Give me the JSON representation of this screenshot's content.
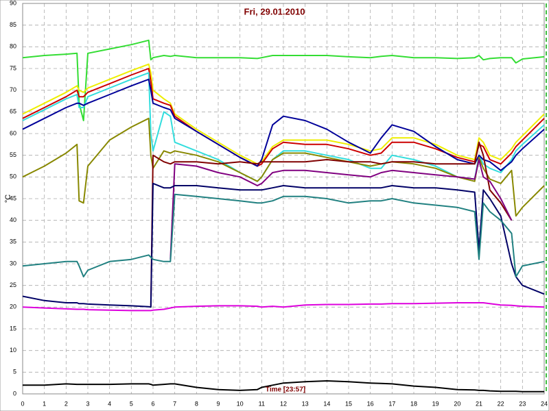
{
  "chart_data": {
    "type": "line",
    "title": "Fri, 29.01.2010",
    "y_label": "°C",
    "x_label": "Time [23:57]",
    "xlim": [
      0,
      24
    ],
    "ylim": [
      0,
      90
    ],
    "xticks": [
      0,
      1,
      2,
      3,
      4,
      5,
      6,
      7,
      8,
      9,
      10,
      11,
      12,
      13,
      14,
      15,
      16,
      17,
      18,
      19,
      20,
      21,
      22,
      23,
      24
    ],
    "yticks": [
      0,
      5,
      10,
      15,
      20,
      25,
      30,
      35,
      40,
      45,
      50,
      55,
      60,
      65,
      70,
      75,
      80,
      85,
      90
    ],
    "grid": true,
    "x": [
      0,
      1,
      2,
      2.5,
      2.6,
      2.8,
      3,
      4,
      5,
      5.8,
      5.9,
      6,
      6.5,
      6.8,
      7,
      8,
      9,
      10,
      10.8,
      11,
      11.5,
      12,
      13,
      14,
      15,
      16,
      16.5,
      17,
      18,
      19,
      20,
      20.8,
      21,
      21.2,
      21.5,
      22,
      22.5,
      22.7,
      23,
      24
    ],
    "series": [
      {
        "color": "#33dd33",
        "values": [
          77.5,
          78,
          78.3,
          78.5,
          67,
          63,
          78.5,
          79.5,
          80.5,
          81.5,
          77,
          77.5,
          78,
          77.8,
          78,
          77.5,
          77.5,
          77.5,
          77.3,
          77.5,
          78,
          78,
          78,
          78,
          77.7,
          77.5,
          77.8,
          78,
          77.5,
          77.5,
          77.3,
          77.5,
          78,
          77,
          77.3,
          77.5,
          77.5,
          76.3,
          77.2,
          77.7
        ]
      },
      {
        "color": "#eeee00",
        "values": [
          64.5,
          67,
          69.5,
          71,
          70,
          69.5,
          70.5,
          72.5,
          74.5,
          76,
          74,
          70,
          68,
          67,
          64.5,
          61,
          58,
          55,
          53,
          53.5,
          57,
          58.5,
          58.5,
          58.5,
          57.5,
          56,
          56.5,
          59,
          59,
          57.5,
          55,
          54,
          59,
          58,
          55,
          54,
          56.5,
          58,
          59.5,
          64.5
        ]
      },
      {
        "color": "#cc0000",
        "values": [
          63.5,
          66,
          68.5,
          70,
          68.5,
          68.5,
          69.5,
          71.5,
          73.5,
          75,
          72,
          68,
          67,
          66.5,
          64,
          60.5,
          57.5,
          54.5,
          52.5,
          53,
          56.5,
          58,
          57.5,
          57.5,
          56.5,
          55,
          55.5,
          58,
          58,
          56.5,
          54.5,
          53.5,
          57.5,
          57,
          54,
          53,
          55.5,
          57,
          58.5,
          63.5
        ]
      },
      {
        "color": "#33dddd",
        "values": [
          63,
          65.5,
          68,
          69,
          66,
          66,
          68.5,
          70.5,
          72.5,
          74,
          60,
          56,
          65,
          64,
          58,
          56,
          54,
          51,
          49,
          50,
          54,
          56,
          56,
          55,
          54,
          52,
          52,
          55,
          54,
          52.5,
          50,
          49.5,
          55,
          53,
          52,
          51,
          54,
          56,
          57.5,
          62
        ]
      },
      {
        "color": "#000099",
        "values": [
          61,
          63.5,
          66,
          67,
          67,
          66.5,
          67,
          69,
          71,
          72.5,
          70,
          67,
          66,
          65.5,
          63.5,
          60.5,
          57.5,
          54.5,
          52.5,
          54,
          62,
          64,
          63,
          61,
          58,
          55.5,
          59,
          62,
          60.5,
          57,
          54,
          53,
          55,
          54,
          53.5,
          51.5,
          53.5,
          55,
          56.5,
          61
        ]
      },
      {
        "color": "#888800",
        "values": [
          50,
          52.5,
          55.5,
          57.5,
          44.5,
          44,
          52.5,
          58.5,
          61.5,
          63.5,
          55,
          52,
          56,
          55.5,
          56,
          55,
          53.5,
          51,
          49,
          50,
          54,
          55.5,
          55.5,
          54.5,
          53.5,
          52.5,
          53,
          53.5,
          53,
          52,
          50,
          49,
          54.5,
          52,
          49.5,
          48.5,
          51.5,
          41,
          43,
          48
        ]
      },
      {
        "color": "#800000",
        "values": [
          null,
          null,
          null,
          null,
          null,
          null,
          null,
          null,
          null,
          null,
          20,
          55,
          53.5,
          53,
          53.5,
          53.5,
          53,
          53.5,
          53,
          53.5,
          53.5,
          53.5,
          53.5,
          54,
          53.5,
          53.5,
          53,
          53.5,
          53.5,
          53,
          53,
          53,
          58,
          55,
          47,
          44,
          40,
          null,
          null,
          null
        ]
      },
      {
        "color": "#800080",
        "values": [
          null,
          null,
          null,
          null,
          null,
          null,
          null,
          null,
          null,
          null,
          null,
          null,
          null,
          31,
          53,
          52.5,
          51,
          50,
          48,
          48.5,
          51,
          51.5,
          51.5,
          51,
          50.5,
          50,
          51,
          51.5,
          51,
          50.5,
          50,
          49.5,
          54,
          50,
          49,
          45,
          40,
          null,
          null,
          null
        ]
      },
      {
        "color": "#000066",
        "values": [
          22.5,
          21.5,
          21,
          21,
          20.8,
          20.8,
          20.7,
          20.5,
          20.3,
          20.1,
          20,
          48.5,
          47.5,
          47.5,
          48,
          48,
          47.5,
          47,
          47,
          47,
          47.5,
          48,
          47.5,
          47.5,
          47.5,
          47.5,
          47.5,
          48,
          47.5,
          47.5,
          47,
          46.5,
          33,
          47,
          45,
          41,
          30,
          27,
          25,
          23
        ]
      },
      {
        "color": "#208080",
        "values": [
          29.5,
          30,
          30.5,
          30.5,
          29.5,
          27,
          28.5,
          30.5,
          31,
          32,
          31.5,
          31,
          30.5,
          30.5,
          46,
          45.5,
          45,
          44.5,
          44,
          44,
          44.5,
          45.5,
          45.5,
          45,
          44,
          44.5,
          44.5,
          45,
          44,
          43.5,
          43,
          42,
          31,
          44,
          42,
          40,
          37,
          27,
          29.5,
          30.5
        ]
      },
      {
        "color": "#dd00dd",
        "values": [
          20,
          19.8,
          19.6,
          19.5,
          19.5,
          19.5,
          19.4,
          19.3,
          19.2,
          19.2,
          19.2,
          19.3,
          19.5,
          19.8,
          20,
          20.2,
          20.3,
          20.3,
          20.2,
          20,
          20.2,
          20,
          20.5,
          20.6,
          20.6,
          20.7,
          20.7,
          20.8,
          20.8,
          20.9,
          21,
          21,
          21,
          21,
          20.8,
          20.5,
          20.4,
          20.3,
          20.2,
          20
        ]
      },
      {
        "color": "#000000",
        "values": [
          2,
          2,
          2.3,
          2.2,
          2.2,
          2.2,
          2.2,
          2.2,
          2.3,
          2.3,
          2.2,
          2,
          2.2,
          2.3,
          2.3,
          1.5,
          1,
          0.8,
          1,
          1.5,
          2,
          2.5,
          2.8,
          3,
          2.8,
          2.5,
          2.4,
          2.3,
          1.8,
          1.5,
          1,
          0.9,
          0.8,
          0.8,
          0.7,
          0.6,
          0.6,
          0.6,
          0.5,
          0.5
        ]
      }
    ]
  }
}
